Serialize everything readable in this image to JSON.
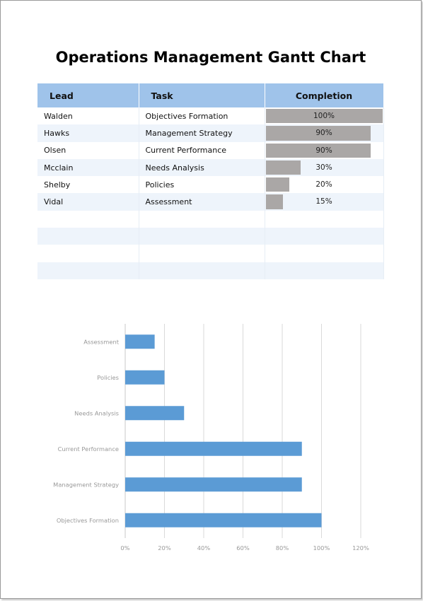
{
  "title": "Operations Management Gantt Chart",
  "table": {
    "headers": {
      "lead": "Lead",
      "task": "Task",
      "completion": "Completion"
    },
    "rows": [
      {
        "lead": "Walden",
        "task": "Objectives Formation",
        "completion": "100%",
        "value": 100
      },
      {
        "lead": "Hawks",
        "task": "Management Strategy",
        "completion": "90%",
        "value": 90
      },
      {
        "lead": "Olsen",
        "task": "Current Performance",
        "completion": "90%",
        "value": 90
      },
      {
        "lead": "Mcclain",
        "task": "Needs Analysis",
        "completion": "30%",
        "value": 30
      },
      {
        "lead": "Shelby",
        "task": "Policies",
        "completion": "20%",
        "value": 20
      },
      {
        "lead": "Vidal",
        "task": "Assessment",
        "completion": "15%",
        "value": 15
      }
    ],
    "empty_rows": 4
  },
  "colors": {
    "header_bg": "#9fc3ea",
    "progress_fill": "#aaa7a6",
    "chart_bar": "#5b9bd5",
    "stripe": "#eef4fb"
  },
  "chart_data": {
    "type": "bar",
    "orientation": "horizontal",
    "categories": [
      "Assessment",
      "Policies",
      "Needs Analysis",
      "Current Performance",
      "Management Strategy",
      "Objectives Formation"
    ],
    "values": [
      15,
      20,
      30,
      90,
      90,
      100
    ],
    "xlim": [
      0,
      120
    ],
    "xticks": [
      "0%",
      "20%",
      "40%",
      "60%",
      "80%",
      "100%",
      "120%"
    ],
    "grid": true,
    "legend": "none"
  }
}
